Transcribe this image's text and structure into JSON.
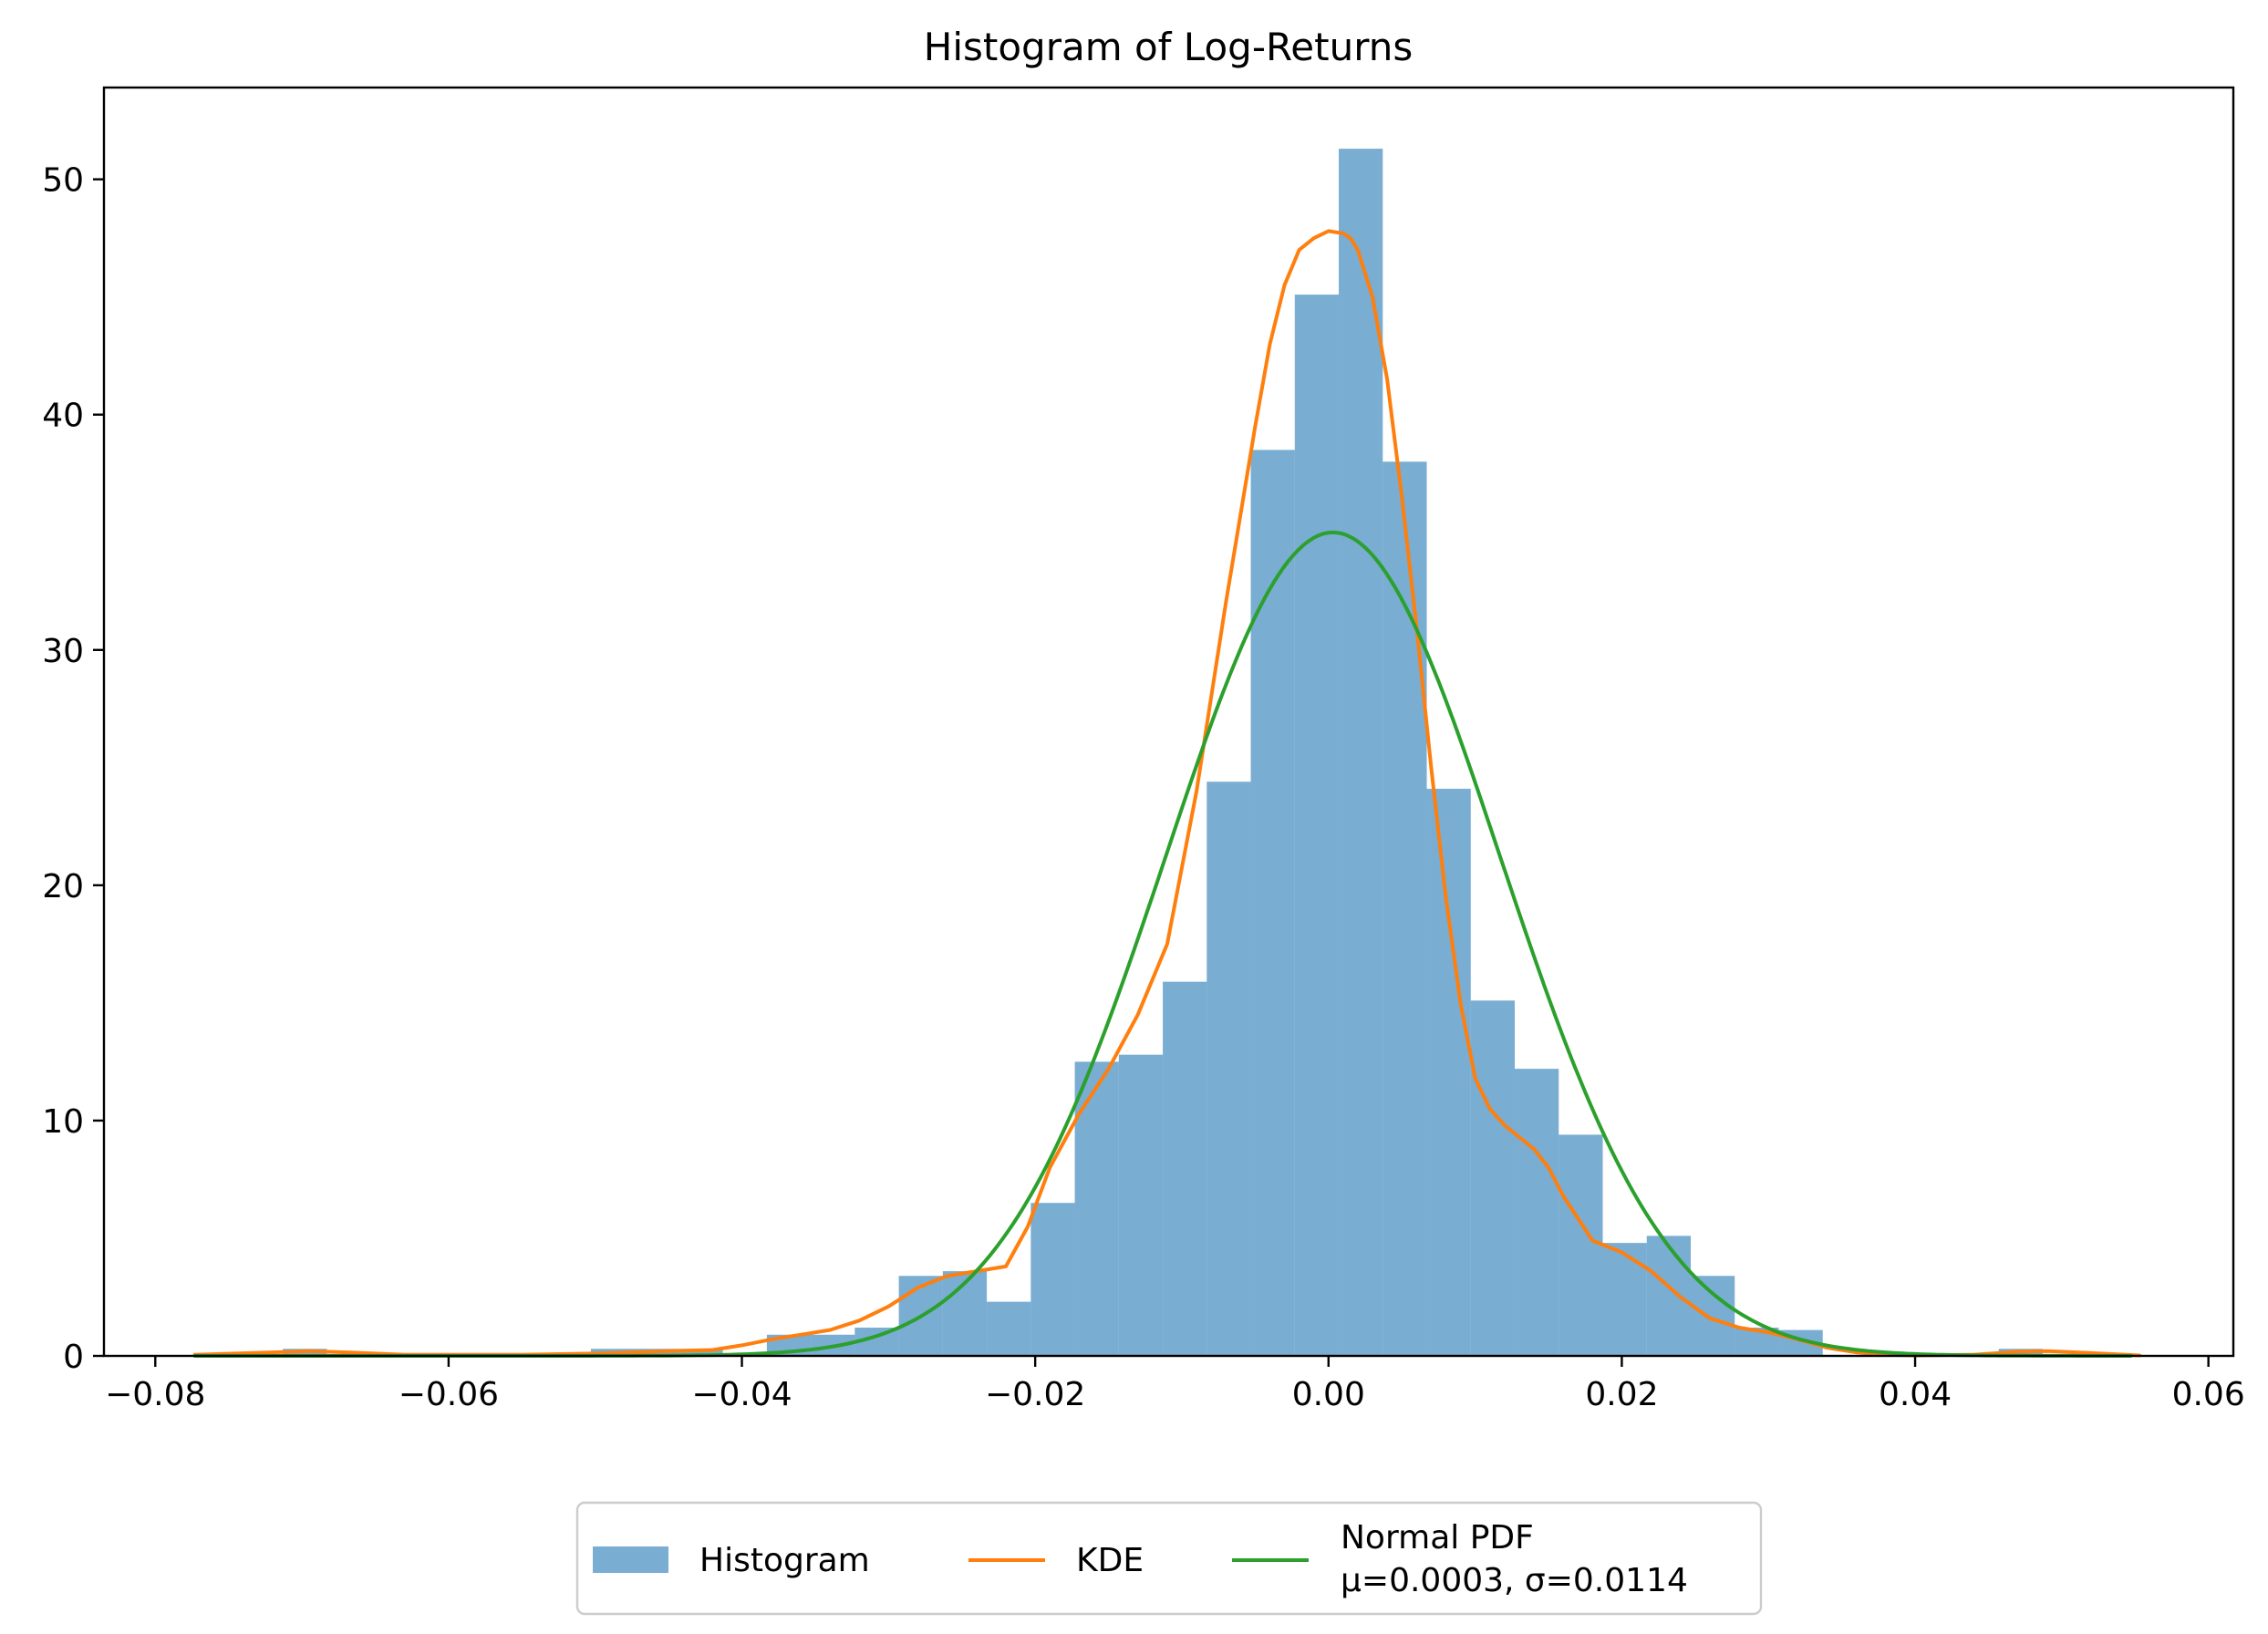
{
  "chart_data": {
    "type": "bar",
    "title": "Histogram of Log-Returns",
    "xlabel": "",
    "ylabel": "",
    "xlim": [
      -0.0835,
      0.0617
    ],
    "ylim": [
      0,
      53.9
    ],
    "grid": false,
    "legend_placement": "bottom-center",
    "x_ticks": [
      "−0.08",
      "−0.06",
      "−0.04",
      "−0.02",
      "0.00",
      "0.02",
      "0.04",
      "0.06"
    ],
    "y_ticks": [
      "0",
      "10",
      "20",
      "30",
      "40",
      "50"
    ],
    "histogram": {
      "name": "Histogram",
      "color": "#1f77b4",
      "opacity": 0.6,
      "bin_edges": [
        -0.0773,
        -0.0743,
        -0.0713,
        -0.0683,
        -0.0653,
        -0.0623,
        -0.0593,
        -0.0563,
        -0.0533,
        -0.0503,
        -0.0473,
        -0.0443,
        -0.0413,
        -0.0383,
        -0.0353,
        -0.0323,
        -0.0293,
        -0.0263,
        -0.0233,
        -0.0203,
        -0.0173,
        -0.0143,
        -0.0113,
        -0.0083,
        -0.0053,
        -0.0023,
        0.0007,
        0.0037,
        0.0067,
        0.0097,
        0.0127,
        0.0157,
        0.0187,
        0.0217,
        0.0247,
        0.0277,
        0.0307,
        0.0337,
        0.0367,
        0.0397,
        0.0427,
        0.0457,
        0.0487,
        0.0517,
        0.0547
      ],
      "values": [
        0,
        0,
        0.3,
        0,
        0,
        0,
        0,
        0,
        0,
        0.3,
        0.3,
        0.3,
        0,
        0.9,
        0.9,
        1.2,
        3.4,
        3.6,
        2.3,
        6.5,
        12.5,
        12.8,
        15.9,
        24.4,
        38.5,
        45.1,
        51.3,
        38.0,
        24.1,
        15.1,
        12.2,
        9.4,
        4.8,
        5.1,
        3.4,
        1.2,
        1.1,
        0,
        0,
        0,
        0,
        0.3,
        0,
        0
      ]
    },
    "series": [
      {
        "name": "KDE",
        "type": "line",
        "color": "#ff7f0e",
        "x": [
          -0.0773,
          -0.072,
          -0.0695,
          -0.067,
          -0.063,
          -0.055,
          -0.05,
          -0.045,
          -0.042,
          -0.04,
          -0.038,
          -0.036,
          -0.034,
          -0.032,
          -0.03,
          -0.028,
          -0.026,
          -0.024,
          -0.022,
          -0.0205,
          -0.019,
          -0.017,
          -0.015,
          -0.013,
          -0.011,
          -0.009,
          -0.007,
          -0.005,
          -0.004,
          -0.003,
          -0.002,
          -0.001,
          0.0,
          0.001,
          0.0015,
          0.002,
          0.003,
          0.004,
          0.005,
          0.006,
          0.007,
          0.008,
          0.009,
          0.01,
          0.011,
          0.012,
          0.013,
          0.014,
          0.015,
          0.016,
          0.018,
          0.02,
          0.022,
          0.024,
          0.026,
          0.028,
          0.03,
          0.032,
          0.034,
          0.036,
          0.038,
          0.04,
          0.044,
          0.047,
          0.049,
          0.051,
          0.0553
        ],
        "y": [
          0.05,
          0.15,
          0.2,
          0.15,
          0.05,
          0.05,
          0.1,
          0.2,
          0.25,
          0.45,
          0.7,
          0.9,
          1.1,
          1.5,
          2.1,
          2.9,
          3.4,
          3.6,
          3.8,
          5.5,
          8.0,
          10.3,
          12.2,
          14.5,
          17.5,
          24.0,
          32.0,
          39.5,
          43.0,
          45.5,
          47.0,
          47.5,
          47.8,
          47.7,
          47.5,
          47.0,
          45.0,
          41.5,
          36.5,
          31.0,
          25.0,
          19.5,
          15.0,
          11.8,
          10.5,
          9.8,
          9.3,
          8.8,
          8.0,
          6.8,
          4.9,
          4.4,
          3.6,
          2.5,
          1.6,
          1.2,
          1.0,
          0.7,
          0.35,
          0.15,
          0.05,
          0.02,
          0.05,
          0.18,
          0.2,
          0.15,
          0.02
        ]
      },
      {
        "name": "Normal PDF\nμ=0.0003, σ=0.0114",
        "type": "line",
        "color": "#2ca02c",
        "mu": 0.0003,
        "sigma": 0.0114
      }
    ]
  },
  "legend": {
    "items": [
      {
        "label": "Histogram",
        "color": "#1f77b4",
        "kind": "patch"
      },
      {
        "label": "KDE",
        "color": "#ff7f0e",
        "kind": "line"
      },
      {
        "label_line1": "Normal PDF",
        "label_line2": "μ=0.0003, σ=0.0114",
        "color": "#2ca02c",
        "kind": "line"
      }
    ]
  }
}
